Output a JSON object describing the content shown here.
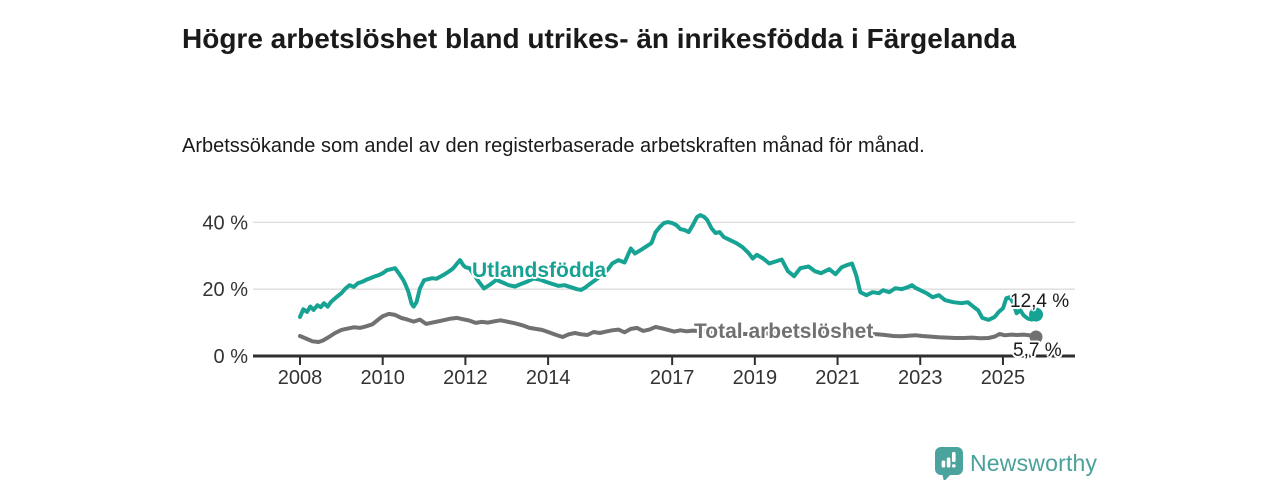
{
  "header": {
    "title": "Högre arbetslöshet bland utrikes- än inrikesfödda i Färgelanda",
    "subtitle": "Arbetssökande som andel av den registerbaserade arbetskraften månad för månad."
  },
  "chart_data": {
    "type": "line",
    "title": "Högre arbetslöshet bland utrikes- än inrikesfödda i Färgelanda",
    "subtitle": "Arbetssökande som andel av den registerbaserade arbetskraften månad för månad.",
    "x_axis": {
      "unit": "year",
      "ticks": [
        2008,
        2010,
        2012,
        2014,
        2017,
        2019,
        2021,
        2023,
        2025
      ],
      "range": [
        2006.9,
        2026.7
      ]
    },
    "y_axis": {
      "unit": "%",
      "ticks": [
        {
          "value": 0,
          "label": "0 %"
        },
        {
          "value": 20,
          "label": "20 %"
        },
        {
          "value": 40,
          "label": "40 %"
        }
      ],
      "range": [
        0,
        45
      ],
      "grid": true
    },
    "series": [
      {
        "name": "Utlandsfödda",
        "color": "#16a394",
        "end_label": "12,4 %",
        "end_value": 12.4,
        "points": [
          [
            2008.0,
            11.7
          ],
          [
            2008.08,
            14.0
          ],
          [
            2008.17,
            13.2
          ],
          [
            2008.25,
            14.8
          ],
          [
            2008.33,
            13.8
          ],
          [
            2008.42,
            15.2
          ],
          [
            2008.5,
            14.6
          ],
          [
            2008.58,
            15.8
          ],
          [
            2008.67,
            14.8
          ],
          [
            2008.75,
            16.2
          ],
          [
            2008.9,
            17.8
          ],
          [
            2009.0,
            18.8
          ],
          [
            2009.1,
            20.2
          ],
          [
            2009.2,
            21.2
          ],
          [
            2009.3,
            20.7
          ],
          [
            2009.4,
            21.8
          ],
          [
            2009.5,
            22.2
          ],
          [
            2009.6,
            22.8
          ],
          [
            2009.7,
            23.3
          ],
          [
            2009.8,
            23.8
          ],
          [
            2009.9,
            24.2
          ],
          [
            2010.0,
            24.8
          ],
          [
            2010.1,
            25.7
          ],
          [
            2010.2,
            26.0
          ],
          [
            2010.3,
            26.3
          ],
          [
            2010.4,
            24.6
          ],
          [
            2010.5,
            22.7
          ],
          [
            2010.55,
            21.4
          ],
          [
            2010.62,
            19.3
          ],
          [
            2010.7,
            15.6
          ],
          [
            2010.75,
            14.8
          ],
          [
            2010.82,
            16.2
          ],
          [
            2010.9,
            20.2
          ],
          [
            2011.0,
            22.7
          ],
          [
            2011.1,
            23.0
          ],
          [
            2011.2,
            23.3
          ],
          [
            2011.3,
            23.1
          ],
          [
            2011.4,
            23.8
          ],
          [
            2011.5,
            24.5
          ],
          [
            2011.6,
            25.3
          ],
          [
            2011.7,
            26.2
          ],
          [
            2011.8,
            27.7
          ],
          [
            2011.87,
            28.7
          ],
          [
            2011.95,
            27.2
          ],
          [
            2012.0,
            26.6
          ],
          [
            2012.1,
            26.3
          ],
          [
            2012.2,
            24.5
          ],
          [
            2012.32,
            22.3
          ],
          [
            2012.45,
            20.2
          ],
          [
            2012.6,
            21.4
          ],
          [
            2012.75,
            22.8
          ],
          [
            2012.9,
            22.0
          ],
          [
            2013.05,
            21.2
          ],
          [
            2013.2,
            20.8
          ],
          [
            2013.35,
            21.6
          ],
          [
            2013.5,
            22.3
          ],
          [
            2013.65,
            23.2
          ],
          [
            2013.8,
            22.9
          ],
          [
            2013.95,
            22.2
          ],
          [
            2014.1,
            21.6
          ],
          [
            2014.25,
            21.0
          ],
          [
            2014.4,
            21.2
          ],
          [
            2014.55,
            20.6
          ],
          [
            2014.7,
            20.0
          ],
          [
            2014.8,
            19.8
          ],
          [
            2014.9,
            20.5
          ],
          [
            2015.0,
            21.5
          ],
          [
            2015.15,
            22.8
          ],
          [
            2015.3,
            24.3
          ],
          [
            2015.45,
            26.0
          ],
          [
            2015.55,
            27.7
          ],
          [
            2015.7,
            28.7
          ],
          [
            2015.85,
            28.0
          ],
          [
            2016.0,
            32.2
          ],
          [
            2016.1,
            30.7
          ],
          [
            2016.25,
            31.8
          ],
          [
            2016.4,
            33.0
          ],
          [
            2016.5,
            33.8
          ],
          [
            2016.6,
            37.1
          ],
          [
            2016.7,
            38.6
          ],
          [
            2016.8,
            39.8
          ],
          [
            2016.9,
            40.1
          ],
          [
            2017.0,
            39.8
          ],
          [
            2017.1,
            39.2
          ],
          [
            2017.2,
            38.0
          ],
          [
            2017.3,
            37.7
          ],
          [
            2017.4,
            37.1
          ],
          [
            2017.5,
            39.2
          ],
          [
            2017.6,
            41.6
          ],
          [
            2017.68,
            42.2
          ],
          [
            2017.78,
            41.6
          ],
          [
            2017.85,
            40.7
          ],
          [
            2017.95,
            38.3
          ],
          [
            2018.05,
            36.8
          ],
          [
            2018.15,
            37.1
          ],
          [
            2018.25,
            35.6
          ],
          [
            2018.4,
            34.7
          ],
          [
            2018.55,
            33.8
          ],
          [
            2018.7,
            32.6
          ],
          [
            2018.85,
            30.8
          ],
          [
            2018.95,
            29.2
          ],
          [
            2019.05,
            30.3
          ],
          [
            2019.2,
            29.2
          ],
          [
            2019.35,
            27.7
          ],
          [
            2019.5,
            28.3
          ],
          [
            2019.65,
            28.9
          ],
          [
            2019.8,
            25.4
          ],
          [
            2019.95,
            23.9
          ],
          [
            2020.1,
            26.3
          ],
          [
            2020.3,
            26.8
          ],
          [
            2020.45,
            25.4
          ],
          [
            2020.6,
            24.8
          ],
          [
            2020.8,
            26.0
          ],
          [
            2020.95,
            24.5
          ],
          [
            2021.1,
            26.6
          ],
          [
            2021.25,
            27.3
          ],
          [
            2021.35,
            27.7
          ],
          [
            2021.45,
            24.2
          ],
          [
            2021.55,
            19.1
          ],
          [
            2021.7,
            18.2
          ],
          [
            2021.85,
            19.1
          ],
          [
            2022.0,
            18.8
          ],
          [
            2022.1,
            19.7
          ],
          [
            2022.25,
            19.1
          ],
          [
            2022.4,
            20.3
          ],
          [
            2022.55,
            20.0
          ],
          [
            2022.7,
            20.6
          ],
          [
            2022.8,
            21.2
          ],
          [
            2022.9,
            20.3
          ],
          [
            2023.0,
            19.7
          ],
          [
            2023.15,
            18.8
          ],
          [
            2023.3,
            17.6
          ],
          [
            2023.45,
            18.2
          ],
          [
            2023.6,
            16.7
          ],
          [
            2023.8,
            16.1
          ],
          [
            2024.0,
            15.8
          ],
          [
            2024.15,
            16.1
          ],
          [
            2024.3,
            14.6
          ],
          [
            2024.4,
            13.7
          ],
          [
            2024.5,
            11.4
          ],
          [
            2024.65,
            10.8
          ],
          [
            2024.8,
            11.7
          ],
          [
            2024.9,
            13.2
          ],
          [
            2025.0,
            14.3
          ],
          [
            2025.08,
            17.3
          ],
          [
            2025.17,
            17.6
          ],
          [
            2025.25,
            15.8
          ],
          [
            2025.33,
            12.8
          ],
          [
            2025.42,
            13.7
          ],
          [
            2025.5,
            12.2
          ],
          [
            2025.6,
            11.2
          ],
          [
            2025.7,
            10.9
          ],
          [
            2025.8,
            12.4
          ]
        ]
      },
      {
        "name": "Total arbetslöshet",
        "color": "#717171",
        "end_label": "5,7 %",
        "end_value": 5.7,
        "points": [
          [
            2008.0,
            6.0
          ],
          [
            2008.15,
            5.2
          ],
          [
            2008.3,
            4.4
          ],
          [
            2008.45,
            4.2
          ],
          [
            2008.55,
            4.6
          ],
          [
            2008.7,
            5.7
          ],
          [
            2008.85,
            6.9
          ],
          [
            2009.0,
            7.8
          ],
          [
            2009.15,
            8.2
          ],
          [
            2009.3,
            8.6
          ],
          [
            2009.45,
            8.4
          ],
          [
            2009.6,
            8.9
          ],
          [
            2009.75,
            9.5
          ],
          [
            2009.9,
            11.0
          ],
          [
            2010.0,
            11.9
          ],
          [
            2010.15,
            12.6
          ],
          [
            2010.3,
            12.3
          ],
          [
            2010.45,
            11.4
          ],
          [
            2010.6,
            10.9
          ],
          [
            2010.75,
            10.3
          ],
          [
            2010.9,
            10.9
          ],
          [
            2011.05,
            9.6
          ],
          [
            2011.2,
            10.0
          ],
          [
            2011.35,
            10.4
          ],
          [
            2011.5,
            10.8
          ],
          [
            2011.65,
            11.2
          ],
          [
            2011.8,
            11.4
          ],
          [
            2011.95,
            11.0
          ],
          [
            2012.1,
            10.6
          ],
          [
            2012.25,
            9.9
          ],
          [
            2012.4,
            10.2
          ],
          [
            2012.55,
            10.0
          ],
          [
            2012.7,
            10.4
          ],
          [
            2012.85,
            10.7
          ],
          [
            2013.0,
            10.3
          ],
          [
            2013.2,
            9.8
          ],
          [
            2013.4,
            9.1
          ],
          [
            2013.55,
            8.4
          ],
          [
            2013.7,
            8.1
          ],
          [
            2013.85,
            7.8
          ],
          [
            2014.0,
            7.2
          ],
          [
            2014.2,
            6.3
          ],
          [
            2014.35,
            5.7
          ],
          [
            2014.5,
            6.5
          ],
          [
            2014.65,
            6.9
          ],
          [
            2014.8,
            6.5
          ],
          [
            2014.95,
            6.3
          ],
          [
            2015.1,
            7.2
          ],
          [
            2015.25,
            6.9
          ],
          [
            2015.4,
            7.3
          ],
          [
            2015.55,
            7.7
          ],
          [
            2015.7,
            7.9
          ],
          [
            2015.85,
            7.1
          ],
          [
            2016.0,
            8.1
          ],
          [
            2016.15,
            8.4
          ],
          [
            2016.3,
            7.5
          ],
          [
            2016.45,
            7.9
          ],
          [
            2016.6,
            8.7
          ],
          [
            2016.75,
            8.3
          ],
          [
            2016.9,
            7.8
          ],
          [
            2017.05,
            7.3
          ],
          [
            2017.2,
            7.7
          ],
          [
            2017.35,
            7.4
          ],
          [
            2017.5,
            7.6
          ],
          [
            2017.8,
            7.3
          ],
          [
            2018.2,
            6.9
          ],
          [
            2018.6,
            6.6
          ],
          [
            2019.0,
            6.6
          ],
          [
            2019.4,
            6.8
          ],
          [
            2019.8,
            7.0
          ],
          [
            2020.2,
            7.6
          ],
          [
            2020.6,
            7.4
          ],
          [
            2021.0,
            7.0
          ],
          [
            2021.4,
            6.8
          ],
          [
            2021.7,
            6.6
          ],
          [
            2021.95,
            6.5
          ],
          [
            2022.15,
            6.3
          ],
          [
            2022.35,
            6.0
          ],
          [
            2022.55,
            5.9
          ],
          [
            2022.75,
            6.1
          ],
          [
            2022.9,
            6.2
          ],
          [
            2023.05,
            6.0
          ],
          [
            2023.25,
            5.8
          ],
          [
            2023.45,
            5.6
          ],
          [
            2023.65,
            5.5
          ],
          [
            2023.85,
            5.4
          ],
          [
            2024.05,
            5.4
          ],
          [
            2024.25,
            5.5
          ],
          [
            2024.45,
            5.3
          ],
          [
            2024.65,
            5.4
          ],
          [
            2024.8,
            5.8
          ],
          [
            2024.92,
            6.6
          ],
          [
            2025.05,
            6.2
          ],
          [
            2025.2,
            6.4
          ],
          [
            2025.35,
            6.3
          ],
          [
            2025.5,
            6.4
          ],
          [
            2025.65,
            6.2
          ],
          [
            2025.8,
            5.7
          ]
        ]
      }
    ],
    "colors": {
      "accent_teal": "#16a394",
      "series_gray": "#717171",
      "axis": "#2e2e2e",
      "gridline": "#dcdcdc",
      "tick_text": "#333333"
    }
  },
  "footer": {
    "brand": "Newsworthy",
    "brand_color": "#4aa09a"
  }
}
